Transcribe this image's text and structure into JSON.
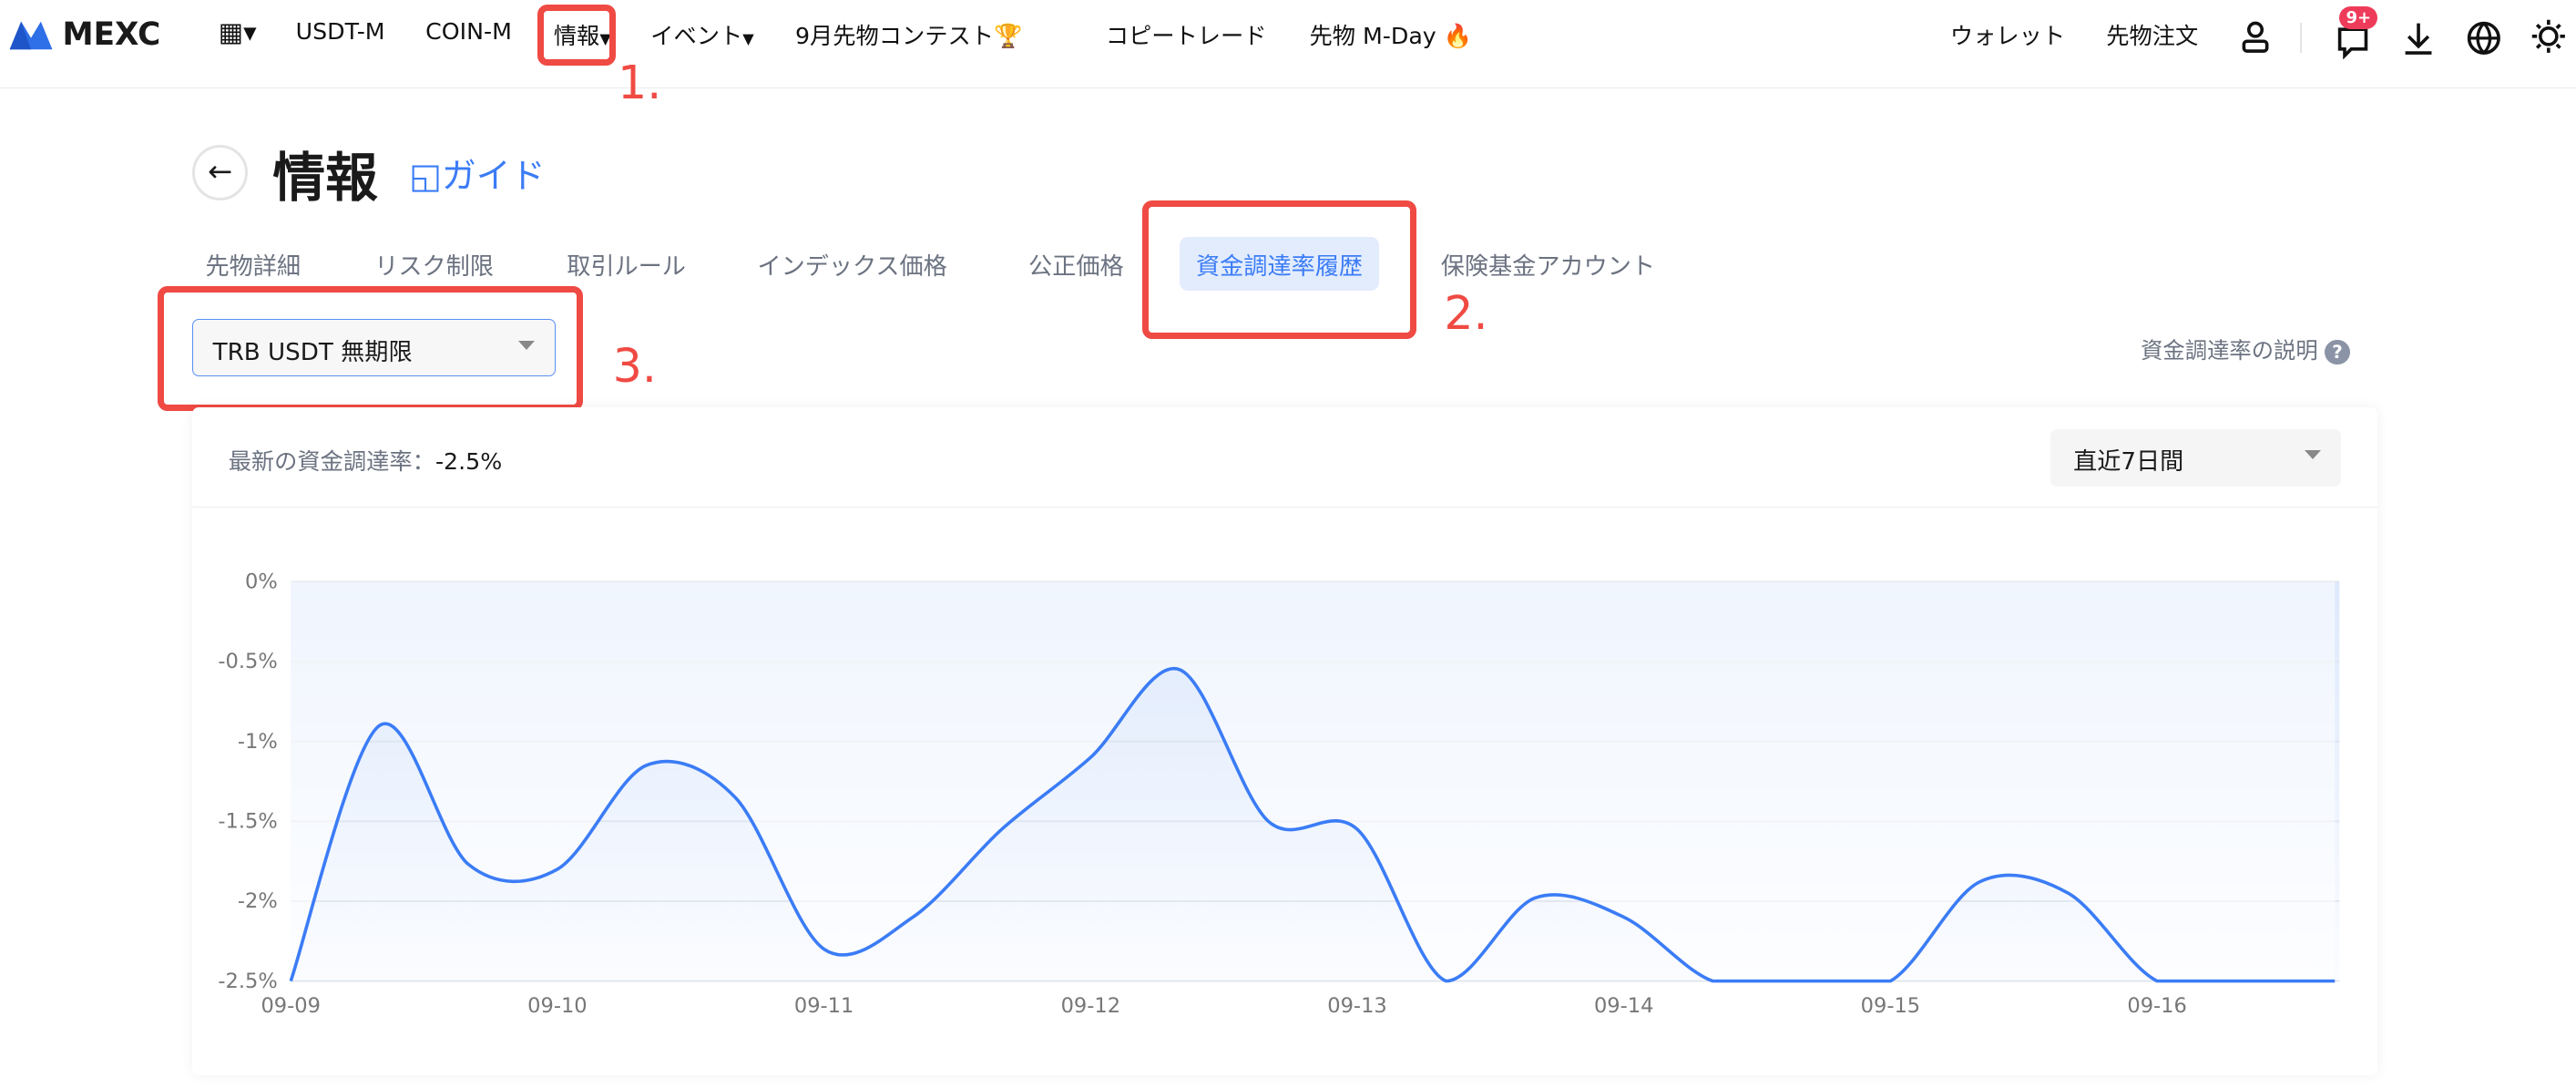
{
  "nav": {
    "logo": "MEXC",
    "items": [
      "USDT-M",
      "COIN-M",
      "情報",
      "イベント",
      "9月先物コンテスト",
      "コピートレード",
      "先物 M-Day"
    ],
    "right": [
      "ウォレット",
      "先物注文"
    ],
    "badge": "9+"
  },
  "page": {
    "title": "情報",
    "guide": "ガイド",
    "tabs": [
      "先物詳細",
      "リスク制限",
      "取引ルール",
      "インデックス価格",
      "公正価格",
      "資金調達率履歴",
      "保険基金アカウント"
    ],
    "active_tab": "資金調達率履歴",
    "contract_select": "TRB USDT 無期限",
    "explain_link": "資金調達率の説明",
    "latest_label": "最新の資金調達率：",
    "latest_value": "-2.5%",
    "range_select": "直近7日間"
  },
  "annotations": [
    "1.",
    "2.",
    "3."
  ],
  "colors": {
    "accent": "#3b7cf6",
    "annotation": "#ef4a43",
    "line": "#3b7cf6"
  },
  "chart_data": {
    "type": "area",
    "title": "",
    "xlabel": "",
    "ylabel": "",
    "ylim": [
      -2.5,
      0
    ],
    "yticks": [
      "0%",
      "-0.5%",
      "-1%",
      "-1.5%",
      "-2%",
      "-2.5%"
    ],
    "xticks": [
      "09-09",
      "09-10",
      "09-11",
      "09-12",
      "09-13",
      "09-14",
      "09-15",
      "09-16"
    ],
    "grid": true,
    "x": [
      "09-09 00:00",
      "09-09 08:00",
      "09-09 16:00",
      "09-10 00:00",
      "09-10 08:00",
      "09-10 16:00",
      "09-11 00:00",
      "09-11 08:00",
      "09-11 16:00",
      "09-12 00:00",
      "09-12 08:00",
      "09-12 16:00",
      "09-13 00:00",
      "09-13 08:00",
      "09-13 16:00",
      "09-14 00:00",
      "09-14 08:00",
      "09-14 16:00",
      "09-15 00:00",
      "09-15 08:00",
      "09-15 16:00",
      "09-16 00:00",
      "09-16 08:00",
      "09-16 16:00"
    ],
    "values": [
      -2.5,
      -0.9,
      -1.77,
      -1.8,
      -1.15,
      -1.35,
      -2.3,
      -2.1,
      -1.55,
      -1.1,
      -0.55,
      -1.5,
      -1.55,
      -2.5,
      -1.98,
      -2.1,
      -2.5,
      -2.5,
      -2.5,
      -1.88,
      -1.95,
      -2.5,
      -2.5,
      -2.5
    ]
  }
}
